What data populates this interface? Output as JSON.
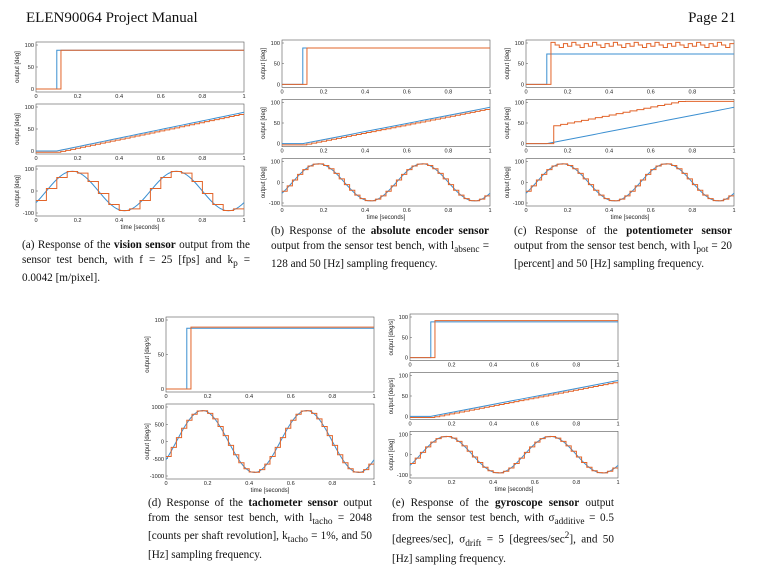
{
  "header": {
    "left": "ELEN90064 Project Manual",
    "right": "Page 21"
  },
  "colors": {
    "blue": "#3b8fd1",
    "orange": "#e2642a"
  },
  "figures": [
    {
      "id": "a",
      "caption_parts": [
        "(a) Response of the ",
        "vision sensor",
        " output from the sensor test bench, with f = 25 [fps] and k",
        "p",
        " = 0.0042 [m/pixel]."
      ],
      "xlabel": "time [seconds]",
      "panels": [
        {
          "ylabel": "output [deg]",
          "yticks": [
            "100",
            "50",
            "0"
          ]
        },
        {
          "ylabel": "output [deg]",
          "yticks": [
            "100",
            "50",
            "0"
          ]
        },
        {
          "ylabel": "output [deg]",
          "yticks": [
            "100",
            "0",
            "-100"
          ]
        }
      ],
      "xticks": [
        "0",
        "0.2",
        "0.4",
        "0.6",
        "0.8",
        "1"
      ]
    },
    {
      "id": "b",
      "caption_parts": [
        "(b) Response of the ",
        "absolute encoder sensor",
        " output from the sensor test bench, with l",
        "absenc",
        " = 128 and 50 [Hz] sampling frequency."
      ],
      "xlabel": "time [seconds]",
      "panels": [
        {
          "ylabel": "output [deg]",
          "yticks": [
            "100",
            "50",
            "0"
          ]
        },
        {
          "ylabel": "output [deg]",
          "yticks": [
            "100",
            "50",
            "0"
          ]
        },
        {
          "ylabel": "output [deg]",
          "yticks": [
            "100",
            "0",
            "-100"
          ]
        }
      ],
      "xticks": [
        "0",
        "0.2",
        "0.4",
        "0.6",
        "0.8",
        "1"
      ]
    },
    {
      "id": "c",
      "caption_parts": [
        "(c) Response of the ",
        "potentiometer sensor",
        " output from the sensor test bench, with l",
        "pot",
        " = 20 [percent] and 50 [Hz] sampling frequency."
      ],
      "xlabel": "time [seconds]",
      "panels": [
        {
          "ylabel": "output [deg]",
          "yticks": [
            "100",
            "50",
            "0"
          ]
        },
        {
          "ylabel": "output [deg]",
          "yticks": [
            "100",
            "50",
            "0"
          ]
        },
        {
          "ylabel": "output [deg]",
          "yticks": [
            "100",
            "0",
            "-100"
          ]
        }
      ],
      "xticks": [
        "0",
        "0.2",
        "0.4",
        "0.6",
        "0.8",
        "1"
      ]
    },
    {
      "id": "d",
      "caption_parts": [
        "(d) Response of the ",
        "tachometer sensor",
        " output from the sensor test bench, with l",
        "tacho",
        " = 2048 [counts per shaft revolution], k",
        "tacho",
        " = 1%, and 50 [Hz] sampling frequency."
      ],
      "xlabel": "time [seconds]",
      "panels": [
        {
          "ylabel": "output [deg/s]",
          "yticks": [
            "100",
            "50",
            "0"
          ]
        },
        {
          "ylabel": "output [deg/s]",
          "yticks": [
            "1000",
            "500",
            "0",
            "-500",
            "-1000"
          ]
        }
      ],
      "xticks": [
        "0",
        "0.2",
        "0.4",
        "0.6",
        "0.8",
        "1"
      ]
    },
    {
      "id": "e",
      "caption_parts": [
        "(e) Response of the ",
        "gyroscope sensor",
        " output from the sensor test bench, with σ",
        "additive",
        " = 0.5 [degrees/sec], σ",
        "drift",
        " = 5 [degrees/sec",
        "2",
        "], and 50 [Hz] sampling frequency."
      ],
      "xlabel": "time [seconds]",
      "panels": [
        {
          "ylabel": "output [deg/s]",
          "yticks": [
            "100",
            "50",
            "0"
          ]
        },
        {
          "ylabel": "output [deg/s]",
          "yticks": [
            "100",
            "50",
            "0"
          ]
        },
        {
          "ylabel": "output [deg]",
          "yticks": [
            "100",
            "0",
            "-100"
          ]
        }
      ],
      "xticks": [
        "0",
        "0.2",
        "0.4",
        "0.6",
        "0.8",
        "1"
      ]
    }
  ]
}
